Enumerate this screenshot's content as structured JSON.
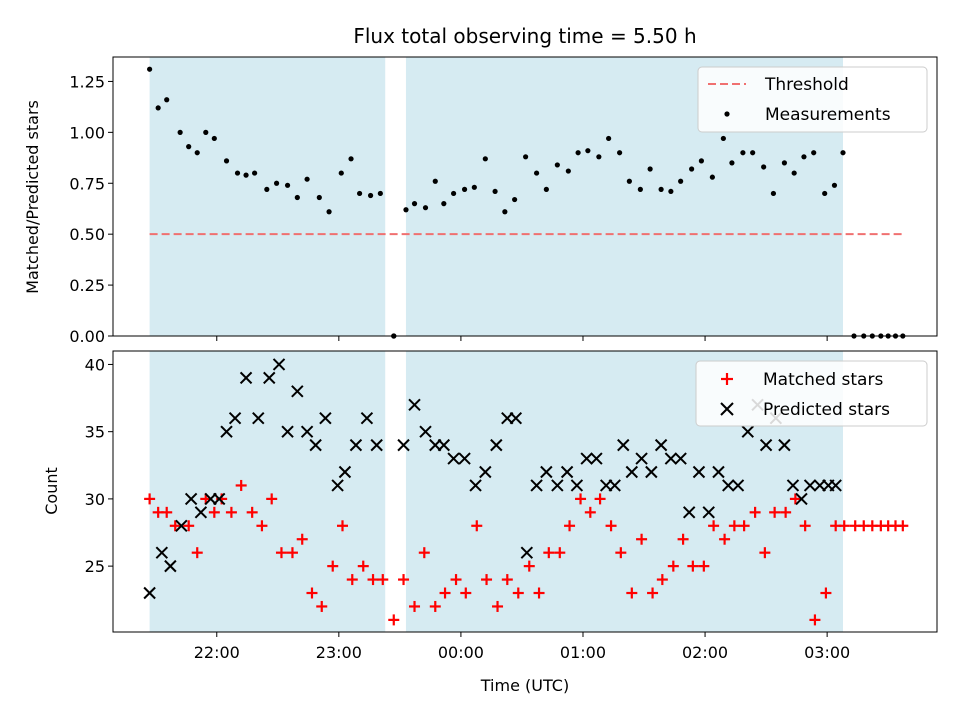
{
  "chart_data": [
    {
      "type": "scatter",
      "title": "Flux total observing time = 5.50 h",
      "xlabel": "",
      "ylabel": "Matched/Predicted stars",
      "ylim": [
        0,
        1.37
      ],
      "xlim_hours": [
        -2.85,
        3.9
      ],
      "yticks": [
        0,
        0.25,
        0.5,
        0.75,
        1.0,
        1.25
      ],
      "ytick_labels": [
        "0.00",
        "0.25",
        "0.50",
        "0.75",
        "1.00",
        "1.25"
      ],
      "shaded_intervals_hours": [
        [
          -2.55,
          -0.62
        ],
        [
          -0.45,
          3.13
        ]
      ],
      "threshold": {
        "name": "Threshold",
        "y": 0.5,
        "x_range_hours": [
          -2.55,
          3.62
        ],
        "color": "#f07070"
      },
      "series": [
        {
          "name": "Measurements",
          "color": "#000000",
          "x_hours": [
            -2.55,
            -2.48,
            -2.41,
            -2.3,
            -2.23,
            -2.16,
            -2.09,
            -2.02,
            -1.92,
            -1.83,
            -1.76,
            -1.69,
            -1.59,
            -1.51,
            -1.42,
            -1.34,
            -1.26,
            -1.16,
            -1.08,
            -0.98,
            -0.9,
            -0.83,
            -0.74,
            -0.66,
            -0.55,
            -0.55,
            -0.45,
            -0.38,
            -0.29,
            -0.21,
            -0.14,
            -0.06,
            0.03,
            0.11,
            0.2,
            0.28,
            0.36,
            0.44,
            0.53,
            0.62,
            0.7,
            0.79,
            0.88,
            0.96,
            1.04,
            1.13,
            1.21,
            1.3,
            1.38,
            1.47,
            1.55,
            1.64,
            1.72,
            1.8,
            1.89,
            1.97,
            2.06,
            2.15,
            2.22,
            2.31,
            2.39,
            2.48,
            2.56,
            2.65,
            2.73,
            2.81,
            2.89,
            2.98,
            3.06,
            3.13,
            3.22,
            3.3,
            3.37,
            3.44,
            3.5,
            3.56,
            3.62
          ],
          "y": [
            1.31,
            1.12,
            1.16,
            1.0,
            0.93,
            0.9,
            1.0,
            0.97,
            0.86,
            0.8,
            0.79,
            0.8,
            0.72,
            0.75,
            0.74,
            0.68,
            0.77,
            0.68,
            0.61,
            0.8,
            0.87,
            0.7,
            0.69,
            0.7,
            0.0,
            0.0,
            0.62,
            0.65,
            0.63,
            0.76,
            0.65,
            0.7,
            0.72,
            0.73,
            0.87,
            0.71,
            0.61,
            0.67,
            0.88,
            0.8,
            0.72,
            0.84,
            0.81,
            0.9,
            0.91,
            0.88,
            0.97,
            0.9,
            0.76,
            0.72,
            0.82,
            0.72,
            0.71,
            0.76,
            0.82,
            0.86,
            0.78,
            0.97,
            0.85,
            0.9,
            0.9,
            0.83,
            0.7,
            0.85,
            0.8,
            0.88,
            0.9,
            0.7,
            0.74,
            0.9,
            0.0,
            0.0,
            0.0,
            0.0,
            0.0,
            0.0,
            0.0
          ]
        }
      ],
      "legend": {
        "position": "top-right",
        "entries": [
          "Threshold",
          "Measurements"
        ]
      }
    },
    {
      "type": "scatter",
      "title": "",
      "xlabel": "Time (UTC)",
      "ylabel": "Count",
      "ylim": [
        20.1,
        41.0
      ],
      "xlim_hours": [
        -2.85,
        3.9
      ],
      "yticks": [
        25,
        30,
        35,
        40
      ],
      "ytick_labels": [
        "25",
        "30",
        "35",
        "40"
      ],
      "xticks_hours": [
        -2,
        -1,
        0,
        1,
        2,
        3
      ],
      "xtick_labels": [
        "22:00",
        "23:00",
        "00:00",
        "01:00",
        "02:00",
        "03:00"
      ],
      "shaded_intervals_hours": [
        [
          -2.55,
          -0.62
        ],
        [
          -0.45,
          3.13
        ]
      ],
      "series": [
        {
          "name": "Matched stars",
          "marker": "+",
          "color": "#ff0000",
          "x_hours": [
            -2.55,
            -2.48,
            -2.41,
            -2.34,
            -2.23,
            -2.16,
            -2.09,
            -2.02,
            -1.96,
            -1.88,
            -1.8,
            -1.71,
            -1.63,
            -1.55,
            -1.47,
            -1.38,
            -1.3,
            -1.22,
            -1.14,
            -1.05,
            -0.97,
            -0.89,
            -0.8,
            -0.72,
            -0.64,
            -0.55,
            -0.47,
            -0.38,
            -0.3,
            -0.21,
            -0.13,
            -0.04,
            0.04,
            0.13,
            0.21,
            0.3,
            0.38,
            0.47,
            0.56,
            0.64,
            0.72,
            0.81,
            0.89,
            0.98,
            1.06,
            1.14,
            1.23,
            1.31,
            1.4,
            1.48,
            1.57,
            1.65,
            1.74,
            1.82,
            1.9,
            1.99,
            2.07,
            2.16,
            2.24,
            2.32,
            2.41,
            2.49,
            2.57,
            2.66,
            2.74,
            2.82,
            2.9,
            2.99,
            3.07,
            3.14,
            3.23,
            3.3,
            3.37,
            3.44,
            3.5,
            3.56,
            3.62
          ],
          "y": [
            30,
            29,
            29,
            28,
            28,
            26,
            30,
            29,
            30,
            29,
            31,
            29,
            28,
            30,
            26,
            26,
            27,
            23,
            22,
            25,
            28,
            24,
            25,
            24,
            24,
            21,
            24,
            22,
            26,
            22,
            23,
            24,
            23,
            28,
            24,
            22,
            24,
            23,
            25,
            23,
            26,
            26,
            28,
            30,
            29,
            30,
            28,
            26,
            23,
            27,
            23,
            24,
            25,
            27,
            25,
            25,
            28,
            27,
            28,
            28,
            29,
            26,
            29,
            29,
            30,
            28,
            21,
            23,
            28,
            28,
            28,
            28,
            28,
            28,
            28,
            28,
            28
          ]
        },
        {
          "name": "Predicted stars",
          "marker": "x",
          "color": "#000000",
          "x_hours": [
            -2.55,
            -2.45,
            -2.38,
            -2.29,
            -2.21,
            -2.13,
            -2.05,
            -1.98,
            -1.92,
            -1.85,
            -1.76,
            -1.66,
            -1.57,
            -1.49,
            -1.42,
            -1.34,
            -1.26,
            -1.19,
            -1.11,
            -1.01,
            -0.95,
            -0.86,
            -0.77,
            -0.69,
            -0.47,
            -0.38,
            -0.29,
            -0.21,
            -0.14,
            -0.06,
            0.03,
            0.12,
            0.2,
            0.29,
            0.38,
            0.45,
            0.54,
            0.62,
            0.7,
            0.79,
            0.87,
            0.95,
            1.03,
            1.11,
            1.19,
            1.26,
            1.33,
            1.4,
            1.48,
            1.56,
            1.64,
            1.72,
            1.8,
            1.87,
            1.95,
            2.03,
            2.11,
            2.19,
            2.27,
            2.35,
            2.43,
            2.5,
            2.58,
            2.65,
            2.72,
            2.79,
            2.86,
            2.94,
            3.01,
            3.07
          ],
          "y": [
            23,
            26,
            25,
            28,
            30,
            29,
            30,
            30,
            35,
            36,
            39,
            36,
            39,
            40,
            35,
            38,
            35,
            34,
            36,
            31,
            32,
            34,
            36,
            34,
            34,
            37,
            35,
            34,
            34,
            33,
            33,
            31,
            32,
            34,
            36,
            36,
            26,
            31,
            32,
            31,
            32,
            31,
            33,
            33,
            31,
            31,
            34,
            32,
            33,
            32,
            34,
            33,
            33,
            29,
            32,
            29,
            32,
            31,
            31,
            35,
            37,
            34,
            36,
            34,
            31,
            30,
            31,
            31,
            31,
            31
          ]
        }
      ],
      "legend": {
        "position": "top-right",
        "entries": [
          "Matched stars",
          "Predicted stars"
        ]
      }
    }
  ]
}
